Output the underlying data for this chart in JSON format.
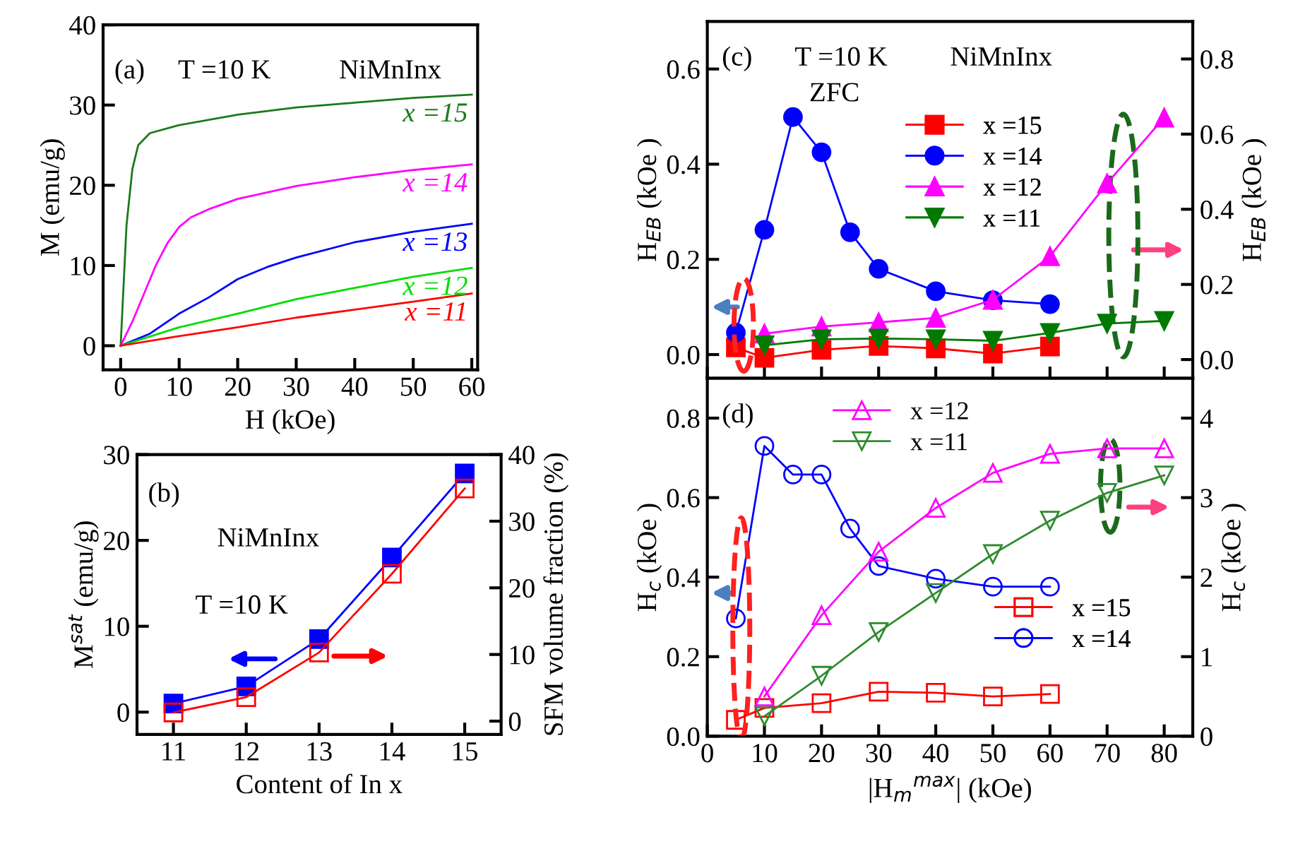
{
  "chart_data": [
    {
      "type": "line",
      "xlabel": "H (kOe)",
      "ylabel": "M (emu/g)",
      "xlim": [
        -3,
        61
      ],
      "ylim": [
        -3,
        40
      ],
      "xticks": [
        0,
        10,
        20,
        30,
        40,
        50,
        60
      ],
      "yticks": [
        0,
        10,
        20,
        30,
        40
      ],
      "grid": false,
      "legend": false,
      "marker": "none",
      "line_style": "solid",
      "annotations": [
        "(a)",
        "T =10 K",
        "NiMnInx"
      ],
      "series": [
        {
          "name": "x =15",
          "color": "#1a7a1a",
          "x": [
            0,
            1,
            2,
            3,
            5,
            10,
            20,
            30,
            40,
            50,
            60
          ],
          "values": [
            0,
            15,
            22,
            25,
            26.5,
            27.5,
            28.8,
            29.7,
            30.3,
            30.9,
            31.3
          ]
        },
        {
          "name": "x =14",
          "color": "#ff00ff",
          "x": [
            0,
            2,
            4,
            6,
            8,
            10,
            12,
            15,
            20,
            30,
            40,
            50,
            60
          ],
          "values": [
            0,
            3,
            6.5,
            10,
            12.8,
            14.8,
            16,
            17,
            18.3,
            19.9,
            21,
            21.9,
            22.6
          ]
        },
        {
          "name": "x =13",
          "color": "#0000ff",
          "x": [
            0,
            5,
            10,
            15,
            20,
            25,
            30,
            40,
            50,
            60
          ],
          "values": [
            0,
            1.5,
            4,
            6,
            8.3,
            9.8,
            11,
            12.9,
            14.2,
            15.2
          ]
        },
        {
          "name": "x =12",
          "color": "#00dd00",
          "x": [
            0,
            10,
            20,
            30,
            40,
            50,
            60
          ],
          "values": [
            0,
            2.3,
            4,
            5.8,
            7.2,
            8.6,
            9.7
          ]
        },
        {
          "name": "x =11",
          "color": "#ff0000",
          "x": [
            0,
            10,
            20,
            30,
            40,
            50,
            60
          ],
          "values": [
            0,
            1.2,
            2.3,
            3.5,
            4.5,
            5.5,
            6.5
          ]
        }
      ]
    },
    {
      "type": "line",
      "xlabel": "Content of In x",
      "ylabel": "M$^{sat}$ (emu/g)",
      "y2label": "SFM volume fraction (%)",
      "categories": [
        "11",
        "12",
        "13",
        "14",
        "15"
      ],
      "ylim": [
        -2.6,
        30
      ],
      "yticks": [
        0,
        10,
        20,
        30
      ],
      "y2lim": [
        -2,
        40
      ],
      "y2ticks": [
        0,
        10,
        20,
        30,
        40
      ],
      "grid": false,
      "legend": false,
      "marker": "square",
      "line_style": "solid",
      "annotations": [
        "(b)",
        "NiMnInx",
        "T =10 K"
      ],
      "series": [
        {
          "color": "#0000ff",
          "values": [
            1.0,
            3.0,
            8.5,
            18,
            27.8
          ]
        },
        {
          "color": "#ff0000",
          "axis": "y2",
          "values": [
            1.3,
            3.6,
            10.3,
            22.1,
            34.9
          ]
        }
      ]
    },
    {
      "type": "line",
      "ylabel": "H$_{EB}$ (kOe )",
      "y2label": "H$_{EB}$ (kOe )",
      "xlim": [
        0,
        85
      ],
      "xticks": [
        0,
        10,
        20,
        30,
        40,
        50,
        60,
        70,
        80
      ],
      "ylim": [
        -0.05,
        0.7
      ],
      "yticks": [
        {
          "value": 0,
          "label": "0.0"
        },
        0.2,
        0.4,
        0.6
      ],
      "y2lim": [
        -0.05,
        0.9
      ],
      "y2ticks": [
        {
          "value": 0,
          "label": "0.0"
        },
        0.2,
        0.4,
        0.6,
        0.8
      ],
      "tick_labels": "y",
      "grid": false,
      "legend": "top",
      "line_style": "solid",
      "annotations": [
        "(c)",
        "T =10 K",
        "NiMnInx",
        "ZFC"
      ],
      "series": [
        {
          "name": "x =15",
          "color": "#ff0000",
          "marker": "square",
          "x": [
            5,
            10,
            20,
            30,
            40,
            50,
            60
          ],
          "values": [
            0.015,
            -0.007,
            0.01,
            0.018,
            0.013,
            0.002,
            0.017
          ]
        },
        {
          "name": "x =14",
          "color": "#0000ff",
          "marker": "circle",
          "x": [
            5,
            10,
            15,
            20,
            25,
            30,
            40,
            50,
            60
          ],
          "values": [
            0.046,
            0.262,
            0.499,
            0.425,
            0.257,
            0.18,
            0.133,
            0.114,
            0.106
          ]
        },
        {
          "name": "x =12",
          "color": "#ff00ff",
          "marker": "triangle",
          "axis": "y2",
          "x": [
            10,
            20,
            30,
            40,
            50,
            60,
            70,
            80
          ],
          "values": [
            0.069,
            0.088,
            0.099,
            0.111,
            0.159,
            0.275,
            0.469,
            0.644
          ]
        },
        {
          "name": "x =11",
          "color": "#007a00",
          "marker": "triangle-down",
          "axis": "y2",
          "x": [
            10,
            20,
            30,
            40,
            50,
            60,
            70,
            80
          ],
          "values": [
            0.038,
            0.054,
            0.056,
            0.054,
            0.05,
            0.071,
            0.096,
            0.103
          ]
        }
      ]
    },
    {
      "type": "line",
      "xlabel": "|H$_{m}$$^{max}$| (kOe)",
      "ylabel": "H$_{c}$ (kOe )",
      "y2label": "H$_{c}$ (kOe )",
      "xlim": [
        0,
        85
      ],
      "xticks": [
        0,
        10,
        20,
        30,
        40,
        50,
        60,
        70,
        80
      ],
      "ylim": [
        0,
        0.9
      ],
      "yticks": [
        {
          "value": 0,
          "label": "0.0"
        },
        0.2,
        0.4,
        0.6,
        0.8
      ],
      "y2lim": [
        0,
        4.5
      ],
      "y2ticks": [
        0,
        1,
        2,
        3,
        4
      ],
      "grid": false,
      "legend": "top",
      "line_style": "solid",
      "annotations": [
        "(d)"
      ],
      "series": [
        {
          "name": "x =12",
          "color": "#ff00ff",
          "marker": "triangle",
          "axis": "y2",
          "x": [
            10,
            20,
            30,
            40,
            50,
            60,
            70,
            80
          ],
          "values": [
            0.5,
            1.52,
            2.32,
            2.87,
            3.31,
            3.55,
            3.62,
            3.62
          ]
        },
        {
          "name": "x =11",
          "color": "#2e8b2e",
          "marker": "triangle-down",
          "axis": "y2",
          "x": [
            10,
            20,
            30,
            40,
            50,
            60,
            70,
            80
          ],
          "values": [
            0.25,
            0.76,
            1.31,
            1.8,
            2.29,
            2.71,
            3.06,
            3.28
          ]
        },
        {
          "name": "x =15",
          "color": "#ff0000",
          "marker": "square",
          "x": [
            5,
            10,
            20,
            30,
            40,
            50,
            60
          ],
          "values": [
            0.041,
            0.071,
            0.083,
            0.112,
            0.109,
            0.1,
            0.106
          ]
        },
        {
          "name": "x =14",
          "color": "#0000ff",
          "marker": "circle",
          "x": [
            5,
            10,
            15,
            20,
            25,
            30,
            40,
            50,
            60
          ],
          "values": [
            0.296,
            0.73,
            0.658,
            0.658,
            0.522,
            0.428,
            0.396,
            0.376,
            0.376
          ]
        }
      ]
    }
  ]
}
